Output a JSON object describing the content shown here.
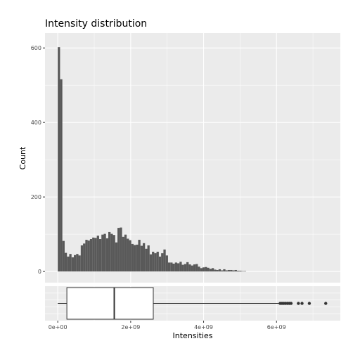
{
  "chart_data": [
    {
      "type": "histogram",
      "title": "Intensity distribution",
      "xlabel": "",
      "ylabel": "Count",
      "x_range": [
        -350000000,
        7750000000
      ],
      "ylim": [
        -30,
        640
      ],
      "y_ticks": [
        0,
        200,
        400,
        600
      ],
      "y_tick_labels": [
        "0",
        "200",
        "400",
        "600"
      ],
      "bin_width": 63000000,
      "bin_start": 0,
      "counts": [
        602,
        516,
        82,
        50,
        40,
        47,
        38,
        44,
        47,
        43,
        70,
        75,
        85,
        83,
        87,
        91,
        90,
        96,
        87,
        99,
        101,
        89,
        106,
        101,
        98,
        78,
        117,
        118,
        93,
        99,
        88,
        84,
        74,
        71,
        72,
        85,
        69,
        76,
        61,
        70,
        46,
        53,
        49,
        53,
        40,
        49,
        59,
        43,
        24,
        24,
        21,
        24,
        22,
        26,
        18,
        20,
        25,
        19,
        16,
        19,
        20,
        13,
        9,
        11,
        12,
        10,
        7,
        9,
        5,
        4,
        6,
        3,
        6,
        3,
        4,
        4,
        3,
        4,
        2,
        2,
        1,
        1
      ],
      "grid": true,
      "background": "#ebebeb",
      "bar_color": "#595959"
    },
    {
      "type": "boxplot",
      "xlabel": "Intensities",
      "x_range": [
        -350000000,
        7750000000
      ],
      "x_ticks": [
        0,
        2000000000,
        4000000000,
        6000000000
      ],
      "x_tick_labels": [
        "0e+00",
        "2e+09",
        "4e+09",
        "6e+09"
      ],
      "whisker_low": 0,
      "q1": 250000000,
      "median": 1550000000,
      "q3": 2620000000,
      "whisker_high": 6080000000,
      "outliers": [
        6100000000,
        6150000000,
        6200000000,
        6250000000,
        6300000000,
        6350000000,
        6400000000,
        6600000000,
        6700000000,
        6900000000,
        7350000000
      ],
      "grid": true,
      "background": "#ebebeb"
    }
  ]
}
